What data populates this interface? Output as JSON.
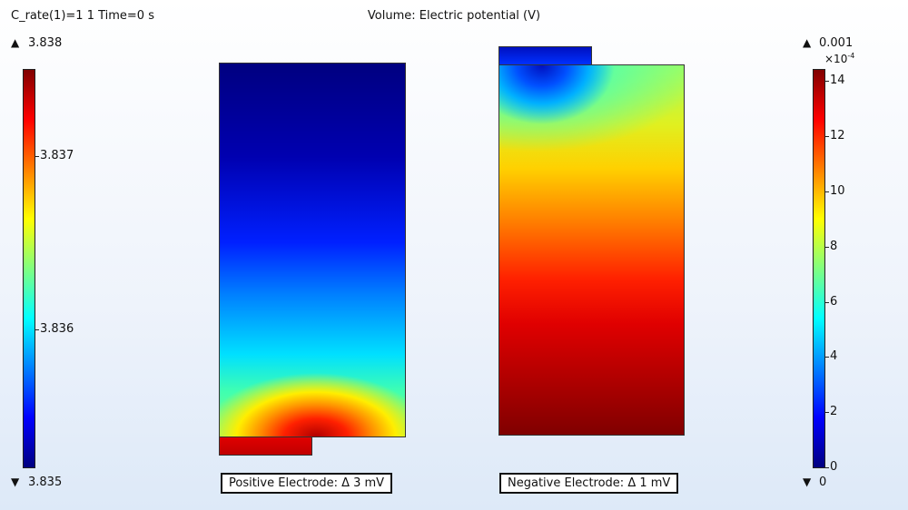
{
  "header": {
    "left_text": "C_rate(1)=1 1 Time=0 s",
    "title": "Volume: Electric potential (V)"
  },
  "left_colorbar": {
    "max_label": "3.838",
    "min_label": "3.835",
    "ticks": [
      "3.837",
      "3.836"
    ],
    "colormap": "jet"
  },
  "right_colorbar": {
    "max_label": "0.001",
    "multiplier": "×10",
    "exponent": "-4",
    "min_label": "0",
    "ticks": [
      "14",
      "12",
      "10",
      "8",
      "6",
      "4",
      "2",
      "0"
    ],
    "colormap": "jet"
  },
  "labels": {
    "positive": "Positive Electrode: Δ 3 mV",
    "negative": "Negative Electrode: Δ 1 mV"
  },
  "icons": {
    "max_marker": "triangle-up-icon",
    "min_marker": "triangle-down-icon"
  },
  "chart_data": {
    "type": "heatmap",
    "title": "Volume: Electric potential (V)",
    "panels": [
      {
        "name": "Positive Electrode",
        "quantity_range": [
          3.835,
          3.838
        ],
        "delta_label": "Δ 3 mV",
        "pattern": "low (dark blue) at top, rising to high (red) at bottom-left tab"
      },
      {
        "name": "Negative Electrode",
        "quantity_range": [
          0,
          0.0014
        ],
        "delta_label": "Δ 1 mV",
        "pattern": "low (blue) at top-left tab, rising to high (dark red) at bottom"
      }
    ]
  }
}
